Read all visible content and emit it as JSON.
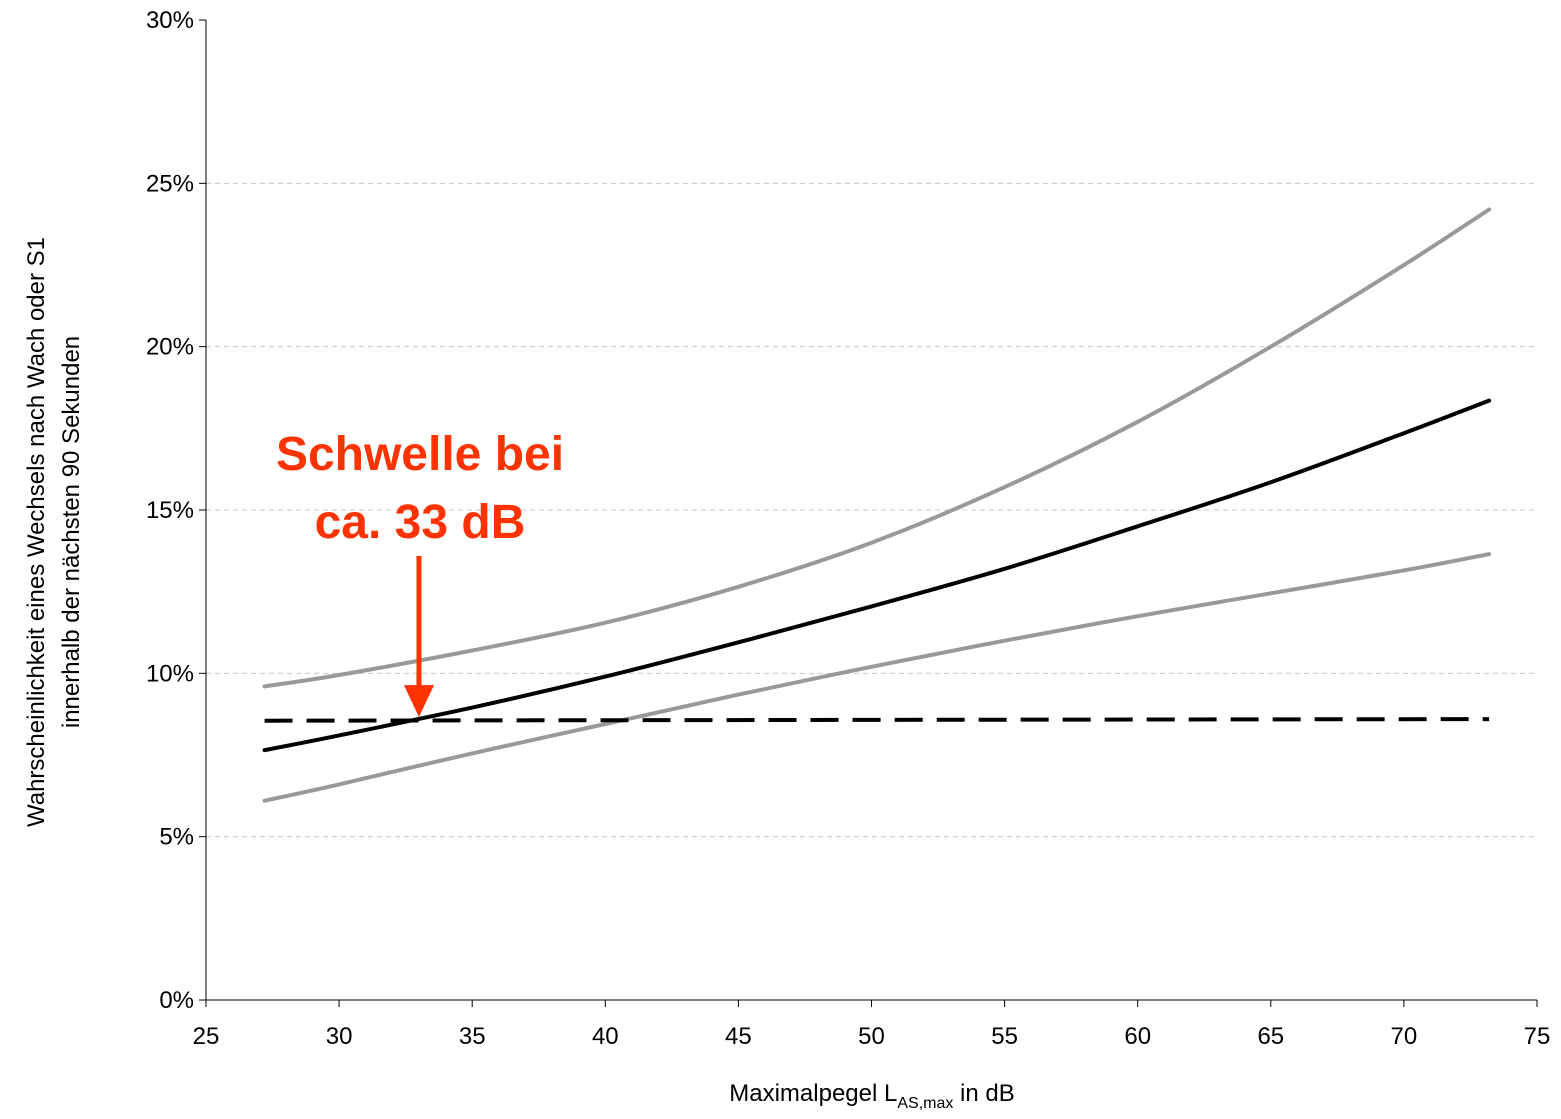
{
  "chart_data": {
    "type": "line",
    "title": "",
    "xlabel": {
      "main": "Maximalpegel L",
      "sub": "AS,max",
      "suffix": " in dB"
    },
    "ylabel": [
      "Wahrscheinlichkeit eines Wechsels nach Wach oder S1",
      "innerhalb der nächsten 90 Sekunden"
    ],
    "xlim": [
      25,
      75
    ],
    "ylim": [
      0,
      30
    ],
    "x_ticks": [
      25,
      30,
      35,
      40,
      45,
      50,
      55,
      60,
      65,
      70,
      75
    ],
    "x_tick_labels": [
      "25",
      "30",
      "35",
      "40",
      "45",
      "50",
      "55",
      "60",
      "65",
      "70",
      "75"
    ],
    "y_ticks": [
      0,
      5,
      10,
      15,
      20,
      25,
      30
    ],
    "y_tick_labels": [
      "0%",
      "5%",
      "10%",
      "15%",
      "20%",
      "25%",
      "30%"
    ],
    "grid": "horizontal dashed",
    "series": [
      {
        "style": "solid",
        "color": "#999999",
        "x": [
          27.2,
          30,
          35,
          40,
          45,
          50,
          55,
          60,
          65,
          70,
          73.2
        ],
        "y": [
          9.6,
          9.95,
          10.7,
          11.55,
          12.65,
          14.0,
          15.7,
          17.7,
          20.0,
          22.5,
          24.2
        ]
      },
      {
        "style": "solid",
        "color": "#000000",
        "x": [
          27.2,
          30,
          35,
          40,
          45,
          50,
          55,
          60,
          65,
          70,
          73.2
        ],
        "y": [
          7.65,
          8.1,
          8.95,
          9.9,
          10.95,
          12.05,
          13.2,
          14.5,
          15.85,
          17.35,
          18.35
        ]
      },
      {
        "style": "solid",
        "color": "#999999",
        "x": [
          27.2,
          30,
          35,
          40,
          45,
          50,
          55,
          60,
          65,
          70,
          73.2
        ],
        "y": [
          6.1,
          6.6,
          7.55,
          8.45,
          9.35,
          10.2,
          11.0,
          11.75,
          12.45,
          13.15,
          13.65
        ]
      },
      {
        "style": "dashed",
        "color": "#000000",
        "x": [
          27.2,
          73.2
        ],
        "y": [
          8.55,
          8.6
        ]
      }
    ],
    "annotations": [
      {
        "lines": [
          "Schwelle bei",
          "ca. 33 dB"
        ],
        "color": "#ff3300",
        "arrow_to": {
          "x": 33,
          "y": 8.6
        }
      }
    ]
  }
}
